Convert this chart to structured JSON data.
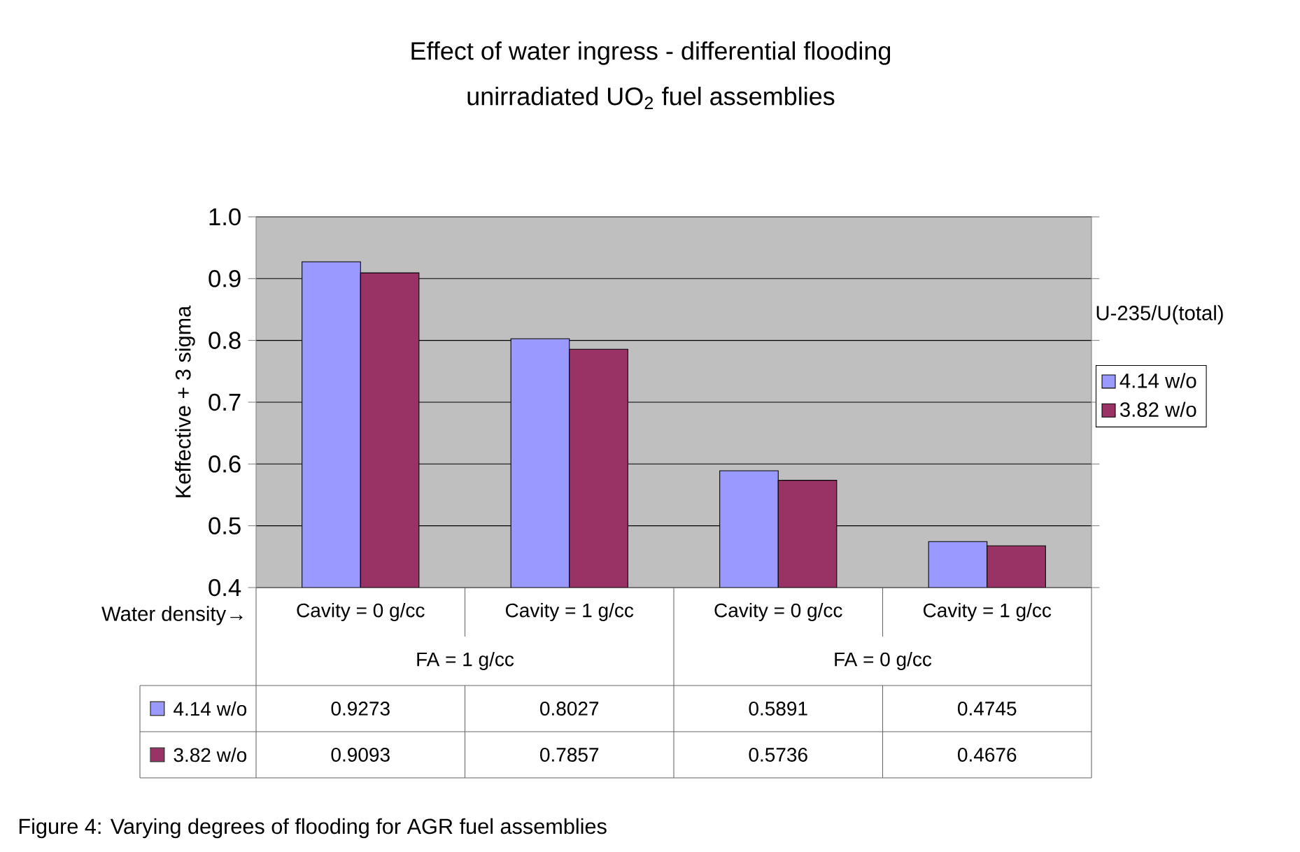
{
  "chart_data": {
    "type": "bar",
    "title": "Effect of water ingress - differential flooding",
    "subtitle": "unirradiated UO$_{2}$ fuel assemblies",
    "ylabel": "Keffective + 3 sigma",
    "legend_title": "U-235/U(total)",
    "categories": [
      "Cavity = 0 g/cc",
      "Cavity = 1 g/cc",
      "Cavity = 0 g/cc",
      "Cavity = 1 g/cc"
    ],
    "series": [
      {
        "name": "4.14 w/o",
        "color": "#9999ff",
        "values": [
          0.9273,
          0.8027,
          0.5891,
          0.4745
        ]
      },
      {
        "name": "3.82 w/o",
        "color": "#993366",
        "values": [
          0.9093,
          0.7857,
          0.5736,
          0.4676
        ]
      }
    ],
    "ylim": [
      0.4,
      1.0
    ],
    "yticks": [
      0.4,
      0.5,
      0.6,
      0.7,
      0.8,
      0.9,
      {
        "value": 1.0,
        "label": "1.0"
      }
    ],
    "grid": "y",
    "legend": "right",
    "data_labels": true,
    "annotations": [
      "Water density→",
      "FA = 1 g/cc",
      "FA = 0 g/cc",
      "Figure 4: Varying degrees of flooding for AGR fuel assemblies"
    ]
  }
}
